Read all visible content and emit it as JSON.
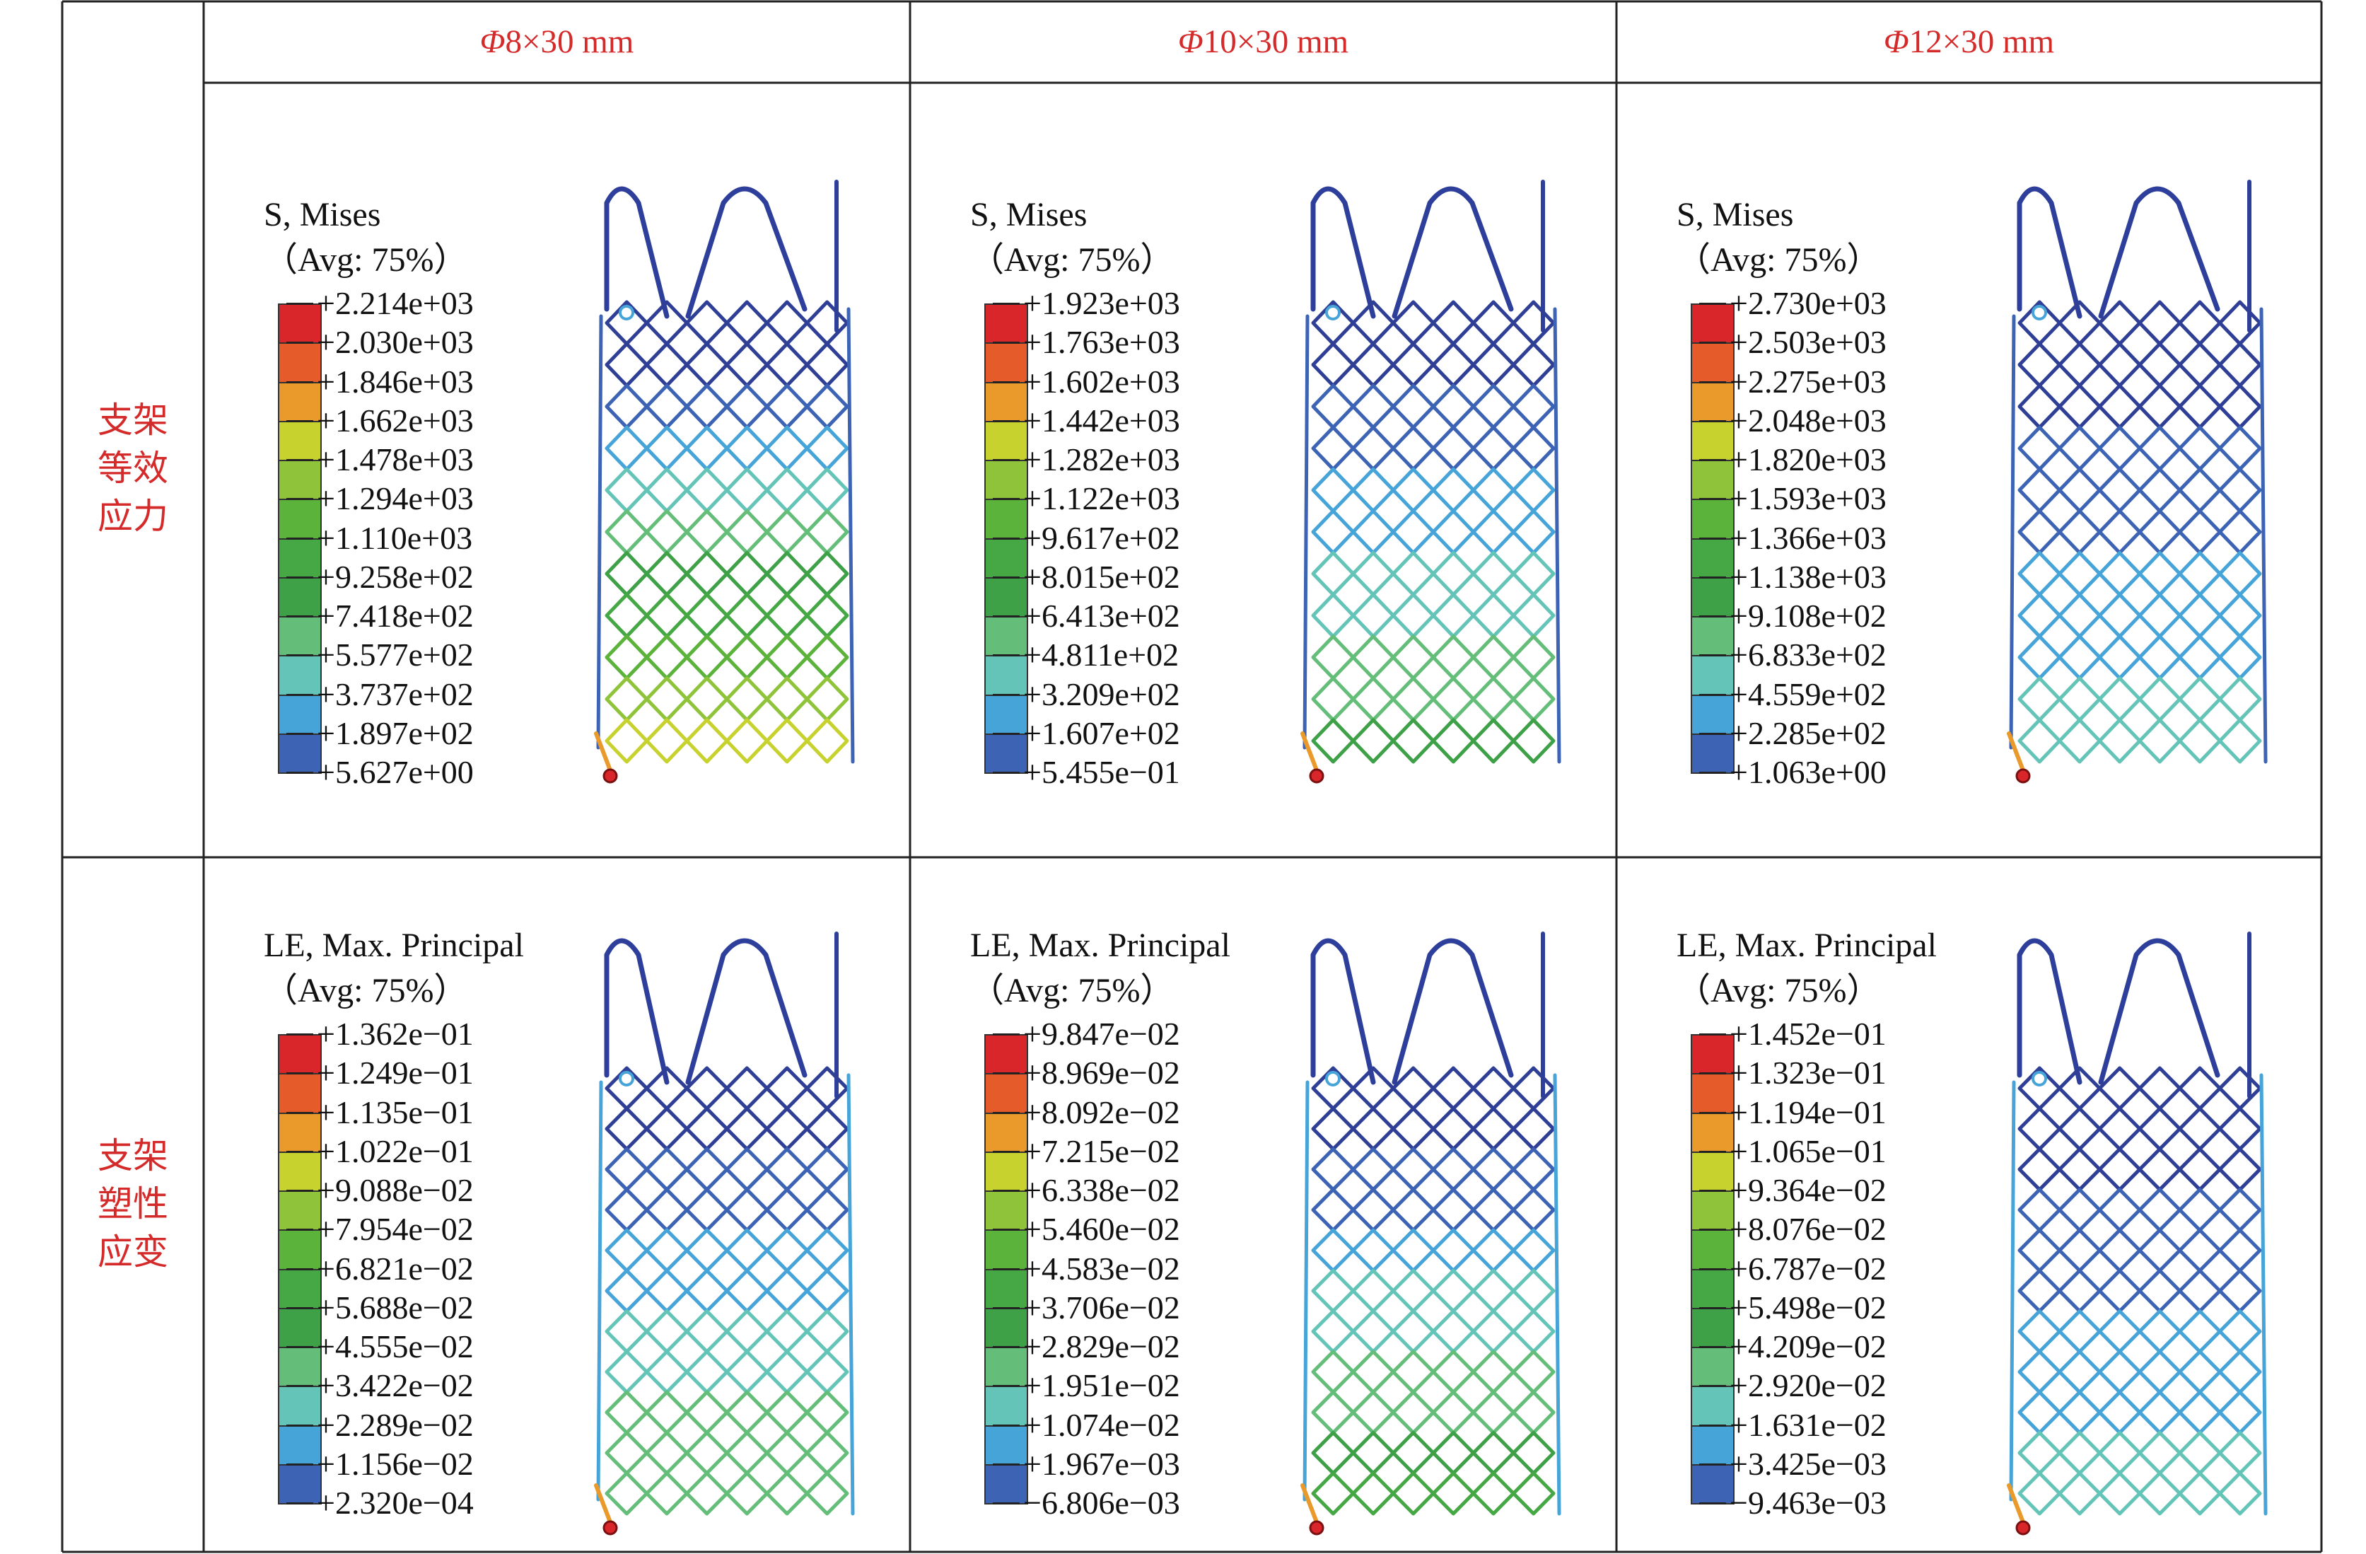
{
  "header": {
    "columns": [
      {
        "phi": "Φ",
        "size": "8×30 mm"
      },
      {
        "phi": "Φ",
        "size": "10×30 mm"
      },
      {
        "phi": "Φ",
        "size": "12×30 mm"
      }
    ]
  },
  "rows": [
    {
      "label": [
        "支架",
        "等效",
        "应力"
      ]
    },
    {
      "label": [
        "支架",
        "塑性",
        "应变"
      ]
    }
  ],
  "legend_colors": [
    "#d8262a",
    "#e55b2a",
    "#e99a2b",
    "#c7d22e",
    "#8fc43a",
    "#5cb33b",
    "#45a844",
    "#3ea047",
    "#64bd78",
    "#64c4b8",
    "#46a4d8",
    "#3c63b4",
    "#2f3f96"
  ],
  "cells": [
    {
      "title": "S, Mises",
      "avg": "（Avg: 75%）",
      "values": [
        "+2.214e+03",
        "+2.030e+03",
        "+1.846e+03",
        "+1.662e+03",
        "+1.478e+03",
        "+1.294e+03",
        "+1.110e+03",
        "+9.258e+02",
        "+7.418e+02",
        "+5.577e+02",
        "+3.737e+02",
        "+1.897e+02",
        "+5.627e+00"
      ]
    },
    {
      "title": "S, Mises",
      "avg": "（Avg: 75%）",
      "values": [
        "+1.923e+03",
        "+1.763e+03",
        "+1.602e+03",
        "+1.442e+03",
        "+1.282e+03",
        "+1.122e+03",
        "+9.617e+02",
        "+8.015e+02",
        "+6.413e+02",
        "+4.811e+02",
        "+3.209e+02",
        "+1.607e+02",
        "+5.455e−01"
      ]
    },
    {
      "title": "S, Mises",
      "avg": "（Avg: 75%）",
      "values": [
        "+2.730e+03",
        "+2.503e+03",
        "+2.275e+03",
        "+2.048e+03",
        "+1.820e+03",
        "+1.593e+03",
        "+1.366e+03",
        "+1.138e+03",
        "+9.108e+02",
        "+6.833e+02",
        "+4.559e+02",
        "+2.285e+02",
        "+1.063e+00"
      ]
    },
    {
      "title": "LE, Max. Principal",
      "avg": "（Avg: 75%）",
      "values": [
        "+1.362e−01",
        "+1.249e−01",
        "+1.135e−01",
        "+1.022e−01",
        "+9.088e−02",
        "+7.954e−02",
        "+6.821e−02",
        "+5.688e−02",
        "+4.555e−02",
        "+3.422e−02",
        "+2.289e−02",
        "+1.156e−02",
        "+2.320e−04"
      ]
    },
    {
      "title": "LE, Max. Principal",
      "avg": "（Avg: 75%）",
      "values": [
        "+9.847e−02",
        "+8.969e−02",
        "+8.092e−02",
        "+7.215e−02",
        "+6.338e−02",
        "+5.460e−02",
        "+4.583e−02",
        "+3.706e−02",
        "+2.829e−02",
        "+1.951e−02",
        "+1.074e−02",
        "+1.967e−03",
        "−6.806e−03"
      ]
    },
    {
      "title": "LE, Max. Principal",
      "avg": "（Avg: 75%）",
      "values": [
        "+1.452e−01",
        "+1.323e−01",
        "+1.194e−01",
        "+1.065e−01",
        "+9.364e−02",
        "+8.076e−02",
        "+6.787e−02",
        "+5.498e−02",
        "+4.209e−02",
        "+2.920e−02",
        "+1.631e−02",
        "+3.425e−03",
        "−9.463e−03"
      ]
    }
  ]
}
